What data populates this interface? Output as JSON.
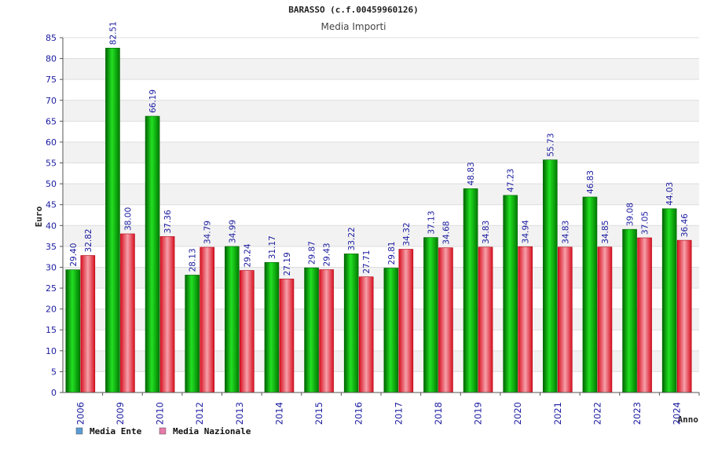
{
  "chart_data": {
    "type": "bar",
    "title": "BARASSO (c.f.00459960126)",
    "subtitle": "Media Importi",
    "xlabel": "Anno",
    "ylabel": "Euro",
    "ylim": [
      0,
      85
    ],
    "ytick_step": 5,
    "categories": [
      "2006",
      "2009",
      "2010",
      "2012",
      "2013",
      "2014",
      "2015",
      "2016",
      "2017",
      "2018",
      "2019",
      "2020",
      "2021",
      "2022",
      "2023",
      "2024"
    ],
    "series": [
      {
        "name": "Media Ente",
        "color": "#00bb00",
        "legend_color": "#5b9bd5",
        "values": [
          29.4,
          82.51,
          66.19,
          28.13,
          34.99,
          31.17,
          29.87,
          33.22,
          29.81,
          37.13,
          48.83,
          47.23,
          55.73,
          46.83,
          39.08,
          44.03
        ],
        "labels": [
          "29.40",
          "82.51",
          "66.19",
          "28.13",
          "34.99",
          "31.17",
          "29.87",
          "33.22",
          "29.81",
          "37.13",
          "48.83",
          "47.23",
          "55.73",
          "46.83",
          "39.08",
          "44.03"
        ]
      },
      {
        "name": "Media Nazionale",
        "color": "#e8202a",
        "legend_color": "#e67aa8",
        "values": [
          32.82,
          38.0,
          37.36,
          34.79,
          29.24,
          27.19,
          29.43,
          27.71,
          34.32,
          34.68,
          34.83,
          34.94,
          34.83,
          34.85,
          37.05,
          36.46
        ],
        "labels": [
          "32.82",
          "38.00",
          "37.36",
          "34.79",
          "29.24",
          "27.19",
          "29.43",
          "27.71",
          "34.32",
          "34.68",
          "34.83",
          "34.94",
          "34.83",
          "34.85",
          "37.05",
          "36.46"
        ]
      }
    ],
    "grid": true
  }
}
